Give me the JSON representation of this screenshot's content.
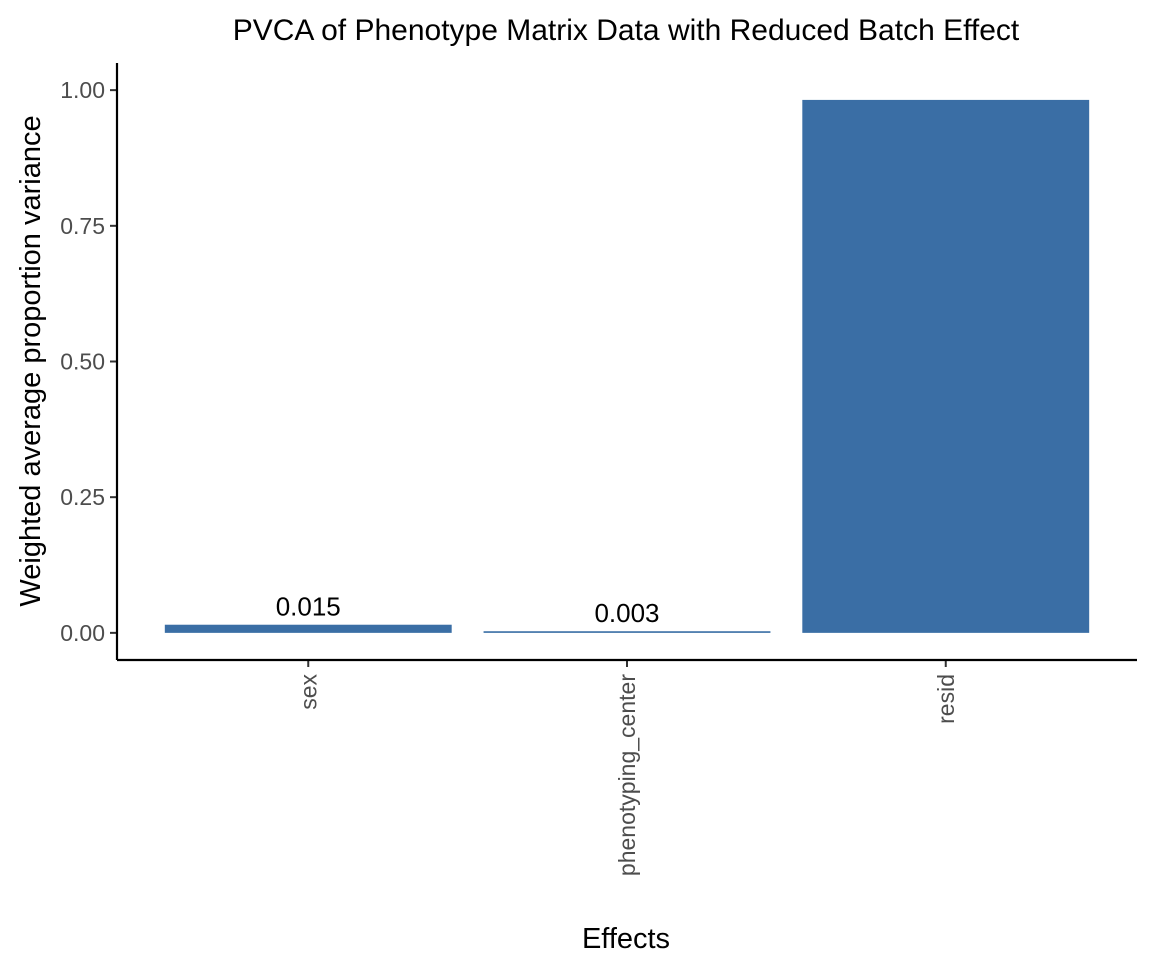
{
  "chart_data": {
    "type": "bar",
    "title": "PVCA of Phenotype Matrix Data with Reduced Batch Effect",
    "xlabel": "Effects",
    "ylabel": "Weighted average proportion variance",
    "categories": [
      "sex",
      "phenotyping_center",
      "resid"
    ],
    "values": [
      0.015,
      0.003,
      0.982
    ],
    "data_labels": [
      "0.015",
      "0.003",
      ""
    ],
    "ylim": [
      -0.05,
      1.05
    ],
    "yticks": [
      0,
      0.25,
      0.5,
      0.75,
      1.0
    ],
    "ytick_labels": [
      "0.00",
      "0.25",
      "0.50",
      "0.75",
      "1.00"
    ],
    "bar_color": "#3A6EA5",
    "grid": false,
    "legend": "none"
  }
}
